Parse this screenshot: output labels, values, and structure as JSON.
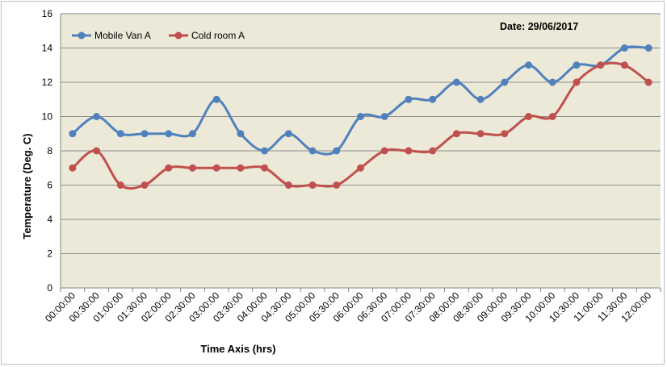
{
  "chart_data": {
    "type": "line",
    "title": "",
    "annotation": "Date: 29/06/2017",
    "xlabel": "Time Axis (hrs)",
    "ylabel": "Temperature (Deg. C)",
    "ylim": [
      0,
      16
    ],
    "yticks": [
      0,
      2,
      4,
      6,
      8,
      10,
      12,
      14,
      16
    ],
    "grid": true,
    "legend_position": "top-left",
    "plot_background": "#ece9d8",
    "categories": [
      "00:00:00",
      "00:30:00",
      "01:00:00",
      "01:30:00",
      "02:00:00",
      "02:30:00",
      "03:00:00",
      "03:30:00",
      "04:00:00",
      "04:30:00",
      "05:00:00",
      "05:30:00",
      "06:00:00",
      "06:30:00",
      "07:00:00",
      "07:30:00",
      "08:00:00",
      "08:30:00",
      "09:00:00",
      "09:30:00",
      "10:00:00",
      "10:30:00",
      "11:00:00",
      "11:30:00",
      "12:00:00"
    ],
    "series": [
      {
        "name": "Mobile Van A",
        "color": "#4f81bd",
        "values": [
          9,
          10,
          9,
          9,
          9,
          9,
          11,
          9,
          8,
          9,
          8,
          8,
          10,
          10,
          11,
          11,
          12,
          11,
          12,
          13,
          12,
          13,
          13,
          14,
          14
        ]
      },
      {
        "name": "Cold room A",
        "color": "#c0504d",
        "values": [
          7,
          8,
          6,
          6,
          7,
          7,
          7,
          7,
          7,
          6,
          6,
          6,
          7,
          8,
          8,
          8,
          9,
          9,
          9,
          10,
          10,
          12,
          13,
          13,
          12
        ]
      }
    ]
  }
}
